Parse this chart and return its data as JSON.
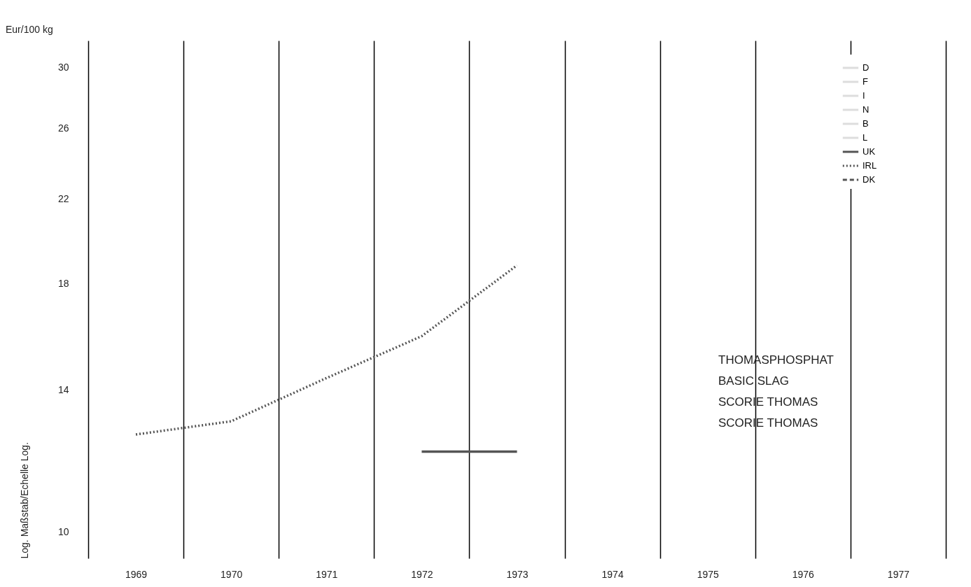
{
  "chart_data": {
    "type": "line",
    "title": "Eur/100 kg",
    "ylabel": "Log. Maßstab/Echelle Log.",
    "categories": [
      "1969",
      "1970",
      "1971",
      "1972",
      "1973",
      "1974",
      "1975",
      "1976",
      "1977"
    ],
    "series": [
      {
        "name": "D",
        "color": "#dddddd",
        "line_style": "solid",
        "values": [
          null,
          null,
          null,
          null,
          null,
          null,
          null,
          null,
          null
        ]
      },
      {
        "name": "F",
        "color": "#dddddd",
        "line_style": "solid",
        "values": [
          null,
          null,
          null,
          null,
          null,
          null,
          null,
          null,
          null
        ]
      },
      {
        "name": "I",
        "color": "#dddddd",
        "line_style": "solid",
        "values": [
          null,
          null,
          null,
          null,
          null,
          null,
          null,
          null,
          null
        ]
      },
      {
        "name": "N",
        "color": "#dddddd",
        "line_style": "solid",
        "values": [
          null,
          null,
          null,
          null,
          null,
          null,
          null,
          null,
          null
        ]
      },
      {
        "name": "B",
        "color": "#dddddd",
        "line_style": "solid",
        "values": [
          null,
          null,
          null,
          null,
          null,
          null,
          null,
          null,
          null
        ]
      },
      {
        "name": "L",
        "color": "#dddddd",
        "line_style": "solid",
        "values": [
          null,
          null,
          null,
          null,
          null,
          null,
          null,
          null,
          null
        ]
      },
      {
        "name": "UK",
        "color": "#555555",
        "line_style": "solid",
        "values": [
          null,
          null,
          null,
          12.1,
          12.1,
          null,
          null,
          null,
          null
        ]
      },
      {
        "name": "IRL",
        "color": "#555555",
        "line_style": "dotted",
        "values": [
          12.6,
          13.0,
          14.4,
          15.9,
          18.8,
          null,
          null,
          null,
          null
        ]
      },
      {
        "name": "DK",
        "color": "#555555",
        "line_style": "dashed",
        "values": [
          null,
          null,
          null,
          null,
          null,
          null,
          null,
          null,
          null
        ]
      }
    ],
    "log": true,
    "ylim": [
      9.4,
      32
    ],
    "yticks": [
      10,
      14,
      18,
      22,
      26,
      30
    ],
    "grid": "x",
    "legend": "top right",
    "annotations": [
      "THOMASPHOSPHAT",
      "BASIC SLAG",
      "SCORIE THOMAS",
      "SCORIE THOMAS"
    ]
  }
}
